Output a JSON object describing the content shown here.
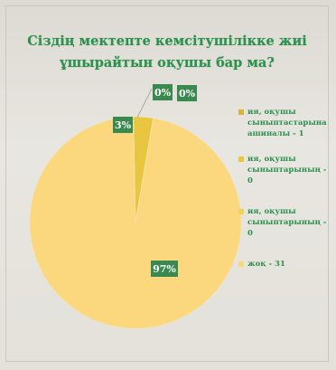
{
  "chart_data": {
    "type": "pie",
    "title": "Сіздің мектепте кемсітушілікке жиі ұшырайтын оқушы бар ма?",
    "slices": [
      {
        "label": "ия, оқушы сыныптастарына ашиналы - 1",
        "value": 3,
        "display": "3%",
        "color": "#e9c640"
      },
      {
        "label": "ия, оқушы сыныптарының - 0",
        "value": 0,
        "display": "0%",
        "color": "#f5d36a"
      },
      {
        "label": "ия, оқушы сыныптарының - 0",
        "value": 0,
        "display": "0%",
        "color": "#f8dc85"
      },
      {
        "label": "жоқ - 31",
        "value": 97,
        "display": "97%",
        "color": "#fbd77e"
      }
    ],
    "legend_position": "right"
  }
}
